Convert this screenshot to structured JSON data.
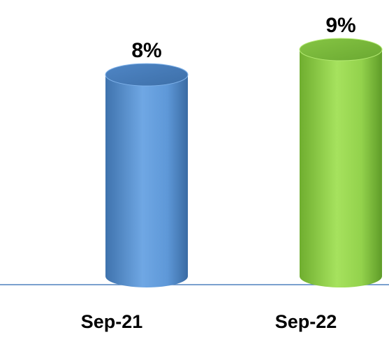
{
  "chart_data": {
    "type": "bar",
    "categories": [
      "Sep-21",
      "Sep-22"
    ],
    "values": [
      8,
      9
    ],
    "data_labels": [
      "8%",
      "9%"
    ],
    "ylim": [
      0,
      9
    ],
    "grid": false,
    "legend": "none",
    "colors": [
      "#5b9bd5",
      "#92d050"
    ]
  }
}
